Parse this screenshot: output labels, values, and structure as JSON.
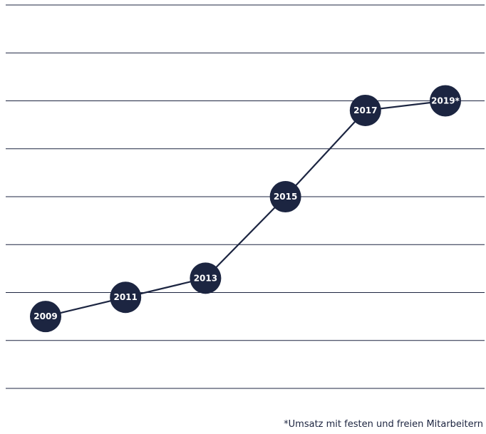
{
  "chart_data": {
    "type": "line",
    "categories": [
      "2009",
      "2011",
      "2013",
      "2015",
      "2017",
      "2019*"
    ],
    "values": [
      1.0,
      1.8,
      2.6,
      6.0,
      9.6,
      10.0
    ],
    "ylim": [
      -2,
      14
    ],
    "grid": true,
    "gridlines": 9,
    "axis_labels_shown": false,
    "marker_style": "filled-circle-with-label",
    "footnote": "*Umsatz mit festen und freien Mitarbeitern",
    "colors": {
      "line": "#1c2541",
      "marker": "#1c2541",
      "marker_text": "#ffffff",
      "grid": "#1d2540",
      "background": "#ffffff"
    }
  }
}
